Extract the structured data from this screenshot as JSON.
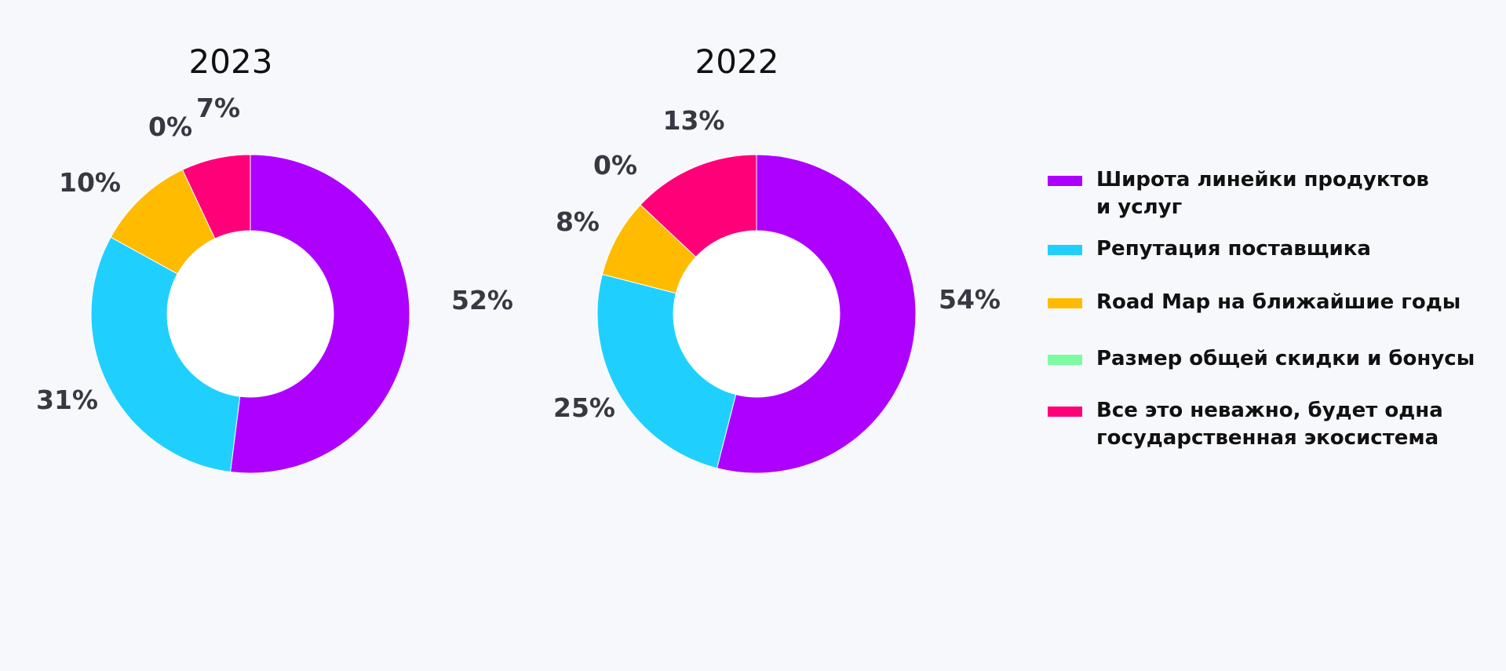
{
  "chart_data": [
    {
      "type": "pie",
      "title": "2023",
      "slices": [
        {
          "label": "Широта линейки продуктов и услуг",
          "value": 52,
          "display": "52%",
          "color": "#ae00ff"
        },
        {
          "label": "Репутация поставщика",
          "value": 31,
          "display": "31%",
          "color": "#1fd0ff"
        },
        {
          "label": "Road Map на ближайшие годы",
          "value": 10,
          "display": "10%",
          "color": "#ffbb00"
        },
        {
          "label": "Размер общей скидки и бонусы",
          "value": 0,
          "display": "0%",
          "color": "#7dfba0"
        },
        {
          "label": "Все это неважно, будет одна государственная экосистема",
          "value": 7,
          "display": "7%",
          "color": "#ff0079"
        }
      ]
    },
    {
      "type": "pie",
      "title": "2022",
      "slices": [
        {
          "label": "Широта линейки продуктов и услуг",
          "value": 54,
          "display": "54%",
          "color": "#ae00ff"
        },
        {
          "label": "Репутация поставщика",
          "value": 25,
          "display": "25%",
          "color": "#1fd0ff"
        },
        {
          "label": "Road Map на ближайшие годы",
          "value": 8,
          "display": "8%",
          "color": "#ffbb00"
        },
        {
          "label": "Размер общей скидки и бонусы",
          "value": 0,
          "display": "0%",
          "color": "#7dfba0"
        },
        {
          "label": "Все это неважно, будет одна государственная экосистема",
          "value": 13,
          "display": "13%",
          "color": "#ff0079"
        }
      ]
    }
  ],
  "legend": [
    {
      "line1": "Широта линейки продуктов",
      "line2": "и услуг",
      "color": "#ae00ff"
    },
    {
      "line1": "Репутация поставщика",
      "line2": "",
      "color": "#1fd0ff"
    },
    {
      "line1": "Road Map на ближайшие годы",
      "line2": "",
      "color": "#ffbb00"
    },
    {
      "line1": "Размер общей скидки и бонусы",
      "line2": "",
      "color": "#7dfba0"
    },
    {
      "line1": "Все это неважно, будет одна",
      "line2": "государственная экосистема",
      "color": "#ff0079"
    }
  ]
}
